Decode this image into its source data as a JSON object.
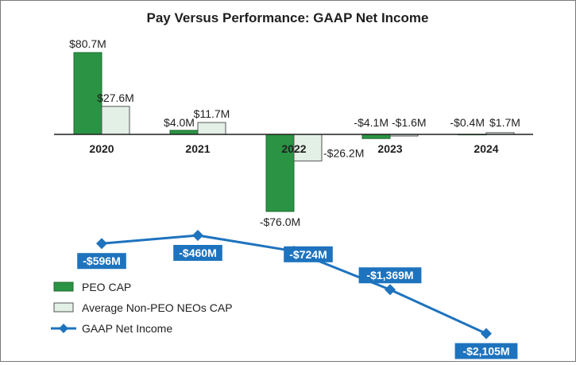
{
  "colors": {
    "peo": "#2a9444",
    "peo_stroke": "#1e6b31",
    "neo": "#e3f0e6",
    "neo_stroke": "#555555",
    "line": "#1e73be",
    "label_bg": "#1e73be"
  },
  "chart_data": {
    "type": "bar",
    "title": "Pay Versus Performance: GAAP Net Income",
    "categories": [
      "2020",
      "2021",
      "2022",
      "2023",
      "2024"
    ],
    "series": [
      {
        "name": "PEO CAP",
        "values": [
          80.7,
          4.0,
          -76.0,
          -4.1,
          -0.4
        ],
        "labels": [
          "$80.7M",
          "$4.0M",
          "-$76.0M",
          "-$4.1M",
          "-$0.4M"
        ]
      },
      {
        "name": "Average Non-PEO NEOs CAP",
        "values": [
          27.6,
          11.7,
          -26.2,
          -1.6,
          1.7
        ],
        "labels": [
          "$27.6M",
          "$11.7M",
          "-$26.2M",
          "-$1.6M",
          "$1.7M"
        ]
      }
    ],
    "line_series": {
      "name": "GAAP Net Income",
      "values": [
        -596,
        -460,
        -724,
        -1369,
        -2105
      ],
      "labels": [
        "-$596M",
        "-$460M",
        "-$724M",
        "-$1,369M",
        "-$2,105M"
      ]
    },
    "legend": [
      "PEO CAP",
      "Average Non-PEO NEOs CAP",
      "GAAP Net Income"
    ],
    "legend_position": "bottom-left"
  }
}
